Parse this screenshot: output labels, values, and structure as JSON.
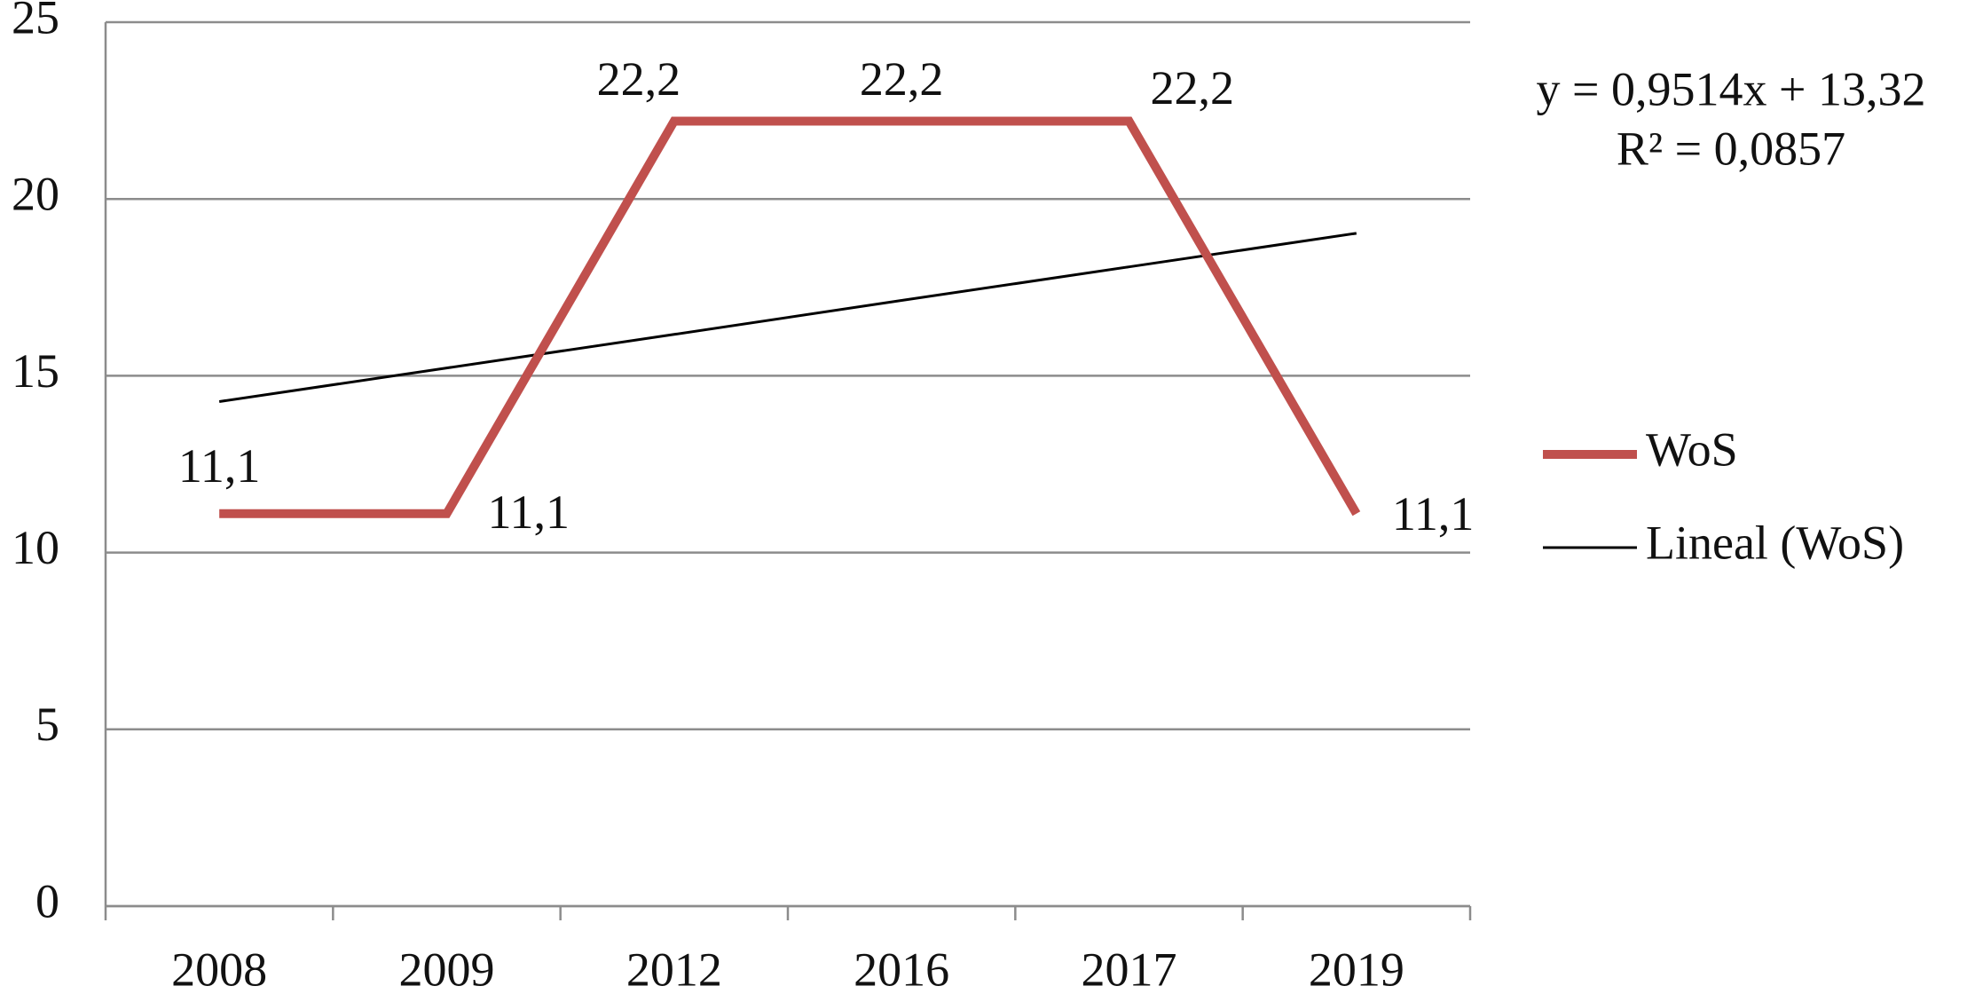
{
  "chart_data": {
    "type": "line",
    "categories": [
      "2008",
      "2009",
      "2012",
      "2016",
      "2017",
      "2019"
    ],
    "series": [
      {
        "name": "WoS",
        "color": "#c0504d",
        "values": [
          11.1,
          11.1,
          22.2,
          22.2,
          22.2,
          11.1
        ],
        "value_labels": [
          "11,1",
          "11,1",
          "22,2",
          "22,2",
          "22,2",
          "11,1"
        ]
      },
      {
        "name": "Lineal (WoS)",
        "color": "#000000",
        "values": [
          14.27,
          15.22,
          16.17,
          17.13,
          18.08,
          19.03
        ]
      }
    ],
    "annotations": [
      "y = 0,9514x + 13,32",
      "R² = 0,0857"
    ],
    "ylim": [
      0,
      25
    ],
    "yticks": [
      0,
      5,
      10,
      15,
      20,
      25
    ],
    "grid": true
  }
}
